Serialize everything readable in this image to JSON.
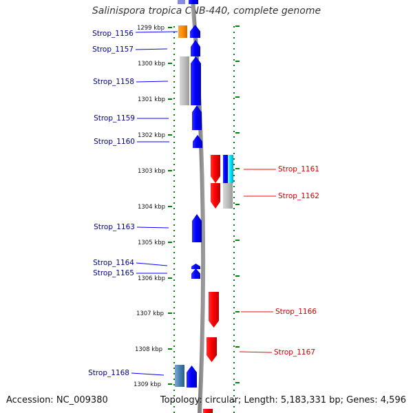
{
  "title": "Salinispora tropica CNB-440, complete genome",
  "footer": {
    "accession": "Accession: NC_009380",
    "topology": "Topology: circular; Length: 5,183,331 bp; Genes: 4,596"
  },
  "colors": {
    "reverse_strand": "#0000ff",
    "forward_strand": "#ff0000",
    "reverse_label": "#00008b",
    "forward_label": "#cc0000",
    "orange_feature": "#ff8c00",
    "grey_feature": "#b0b0b0",
    "cyan_feature": "#00e5ff",
    "steelblue_feature": "#4682b4",
    "backbone": "#808080",
    "scale_ticks": "#008000"
  },
  "scale": {
    "unit": "kbp",
    "labels": [
      "1299 kbp",
      "1300 kbp",
      "1301 kbp",
      "1302 kbp",
      "1303 kbp",
      "1304 kbp",
      "1305 kbp",
      "1306 kbp",
      "1307 kbp",
      "1308 kbp",
      "1309 kbp"
    ]
  },
  "genes": [
    {
      "id": "g1156",
      "label": "Strop_1156",
      "strand": "reverse"
    },
    {
      "id": "g1157",
      "label": "Strop_1157",
      "strand": "reverse"
    },
    {
      "id": "g1158",
      "label": "Strop_1158",
      "strand": "reverse"
    },
    {
      "id": "g1159",
      "label": "Strop_1159",
      "strand": "reverse"
    },
    {
      "id": "g1160",
      "label": "Strop_1160",
      "strand": "reverse"
    },
    {
      "id": "g1161",
      "label": "Strop_1161",
      "strand": "forward"
    },
    {
      "id": "g1162",
      "label": "Strop_1162",
      "strand": "forward"
    },
    {
      "id": "g1163",
      "label": "Strop_1163",
      "strand": "reverse"
    },
    {
      "id": "g1164",
      "label": "Strop_1164",
      "strand": "reverse"
    },
    {
      "id": "g1165",
      "label": "Strop_1165",
      "strand": "reverse"
    },
    {
      "id": "g1166",
      "label": "Strop_1166",
      "strand": "forward"
    },
    {
      "id": "g1167",
      "label": "Strop_1167",
      "strand": "forward"
    },
    {
      "id": "g1168",
      "label": "Strop_1168",
      "strand": "reverse"
    }
  ]
}
